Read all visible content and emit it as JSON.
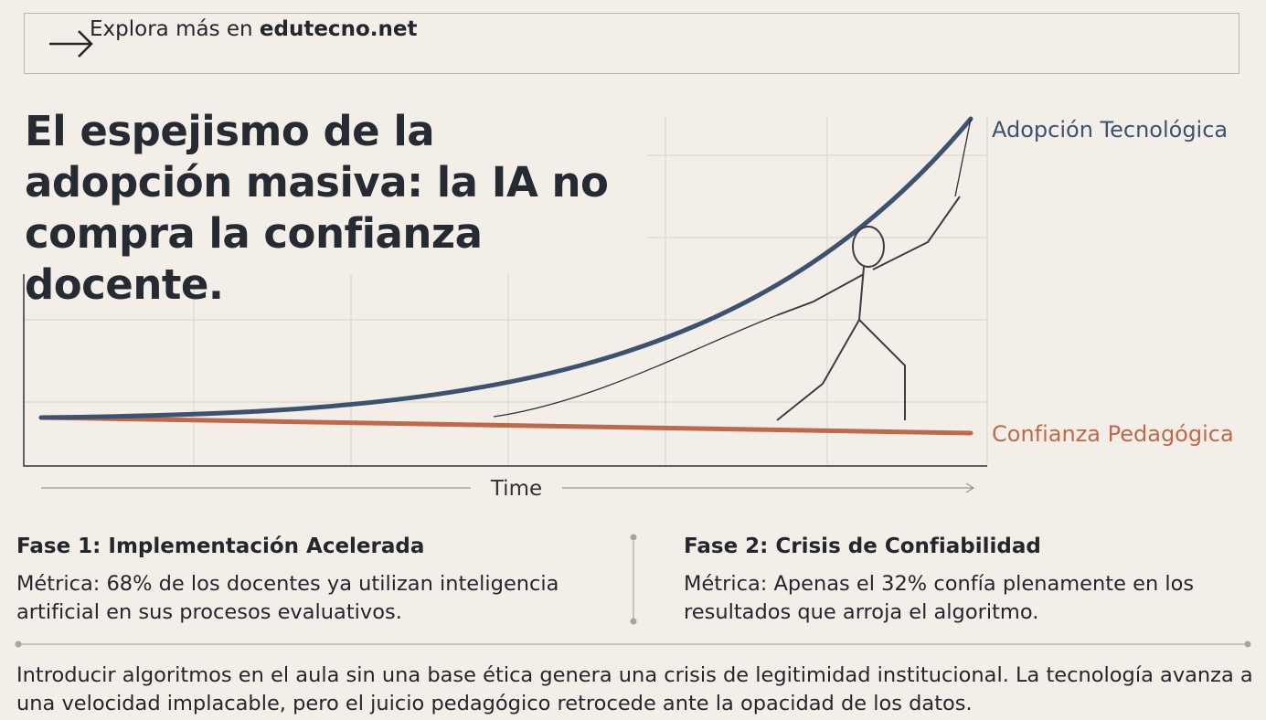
{
  "banner": {
    "prefix": "Explora más en",
    "link": "edutecno.net"
  },
  "title": "El espejismo de la adopción masiva: la IA no compra la confianza docente.",
  "chart": {
    "series_top": "Adopción Tecnológica",
    "series_bottom": "Confianza Pedagógica",
    "x_axis": "Time"
  },
  "phases": [
    {
      "title": "Fase 1: Implementación Acelerada",
      "metric_label": "Métrica:",
      "text": "68% de los docentes ya utilizan inteligencia artificial en sus procesos evaluativos."
    },
    {
      "title": "Fase 2: Crisis de Confiabilidad",
      "metric_label": "Métrica:",
      "text": "Apenas el 32% confía plenamente en los resultados que arroja el algoritmo."
    }
  ],
  "footer": "Introducir algoritmos en el aula sin una base ética genera una crisis de legitimidad institucional. La tecnología avanza a una velocidad implacable, pero el juicio pedagógico retrocede ante la opacidad de los datos."
}
